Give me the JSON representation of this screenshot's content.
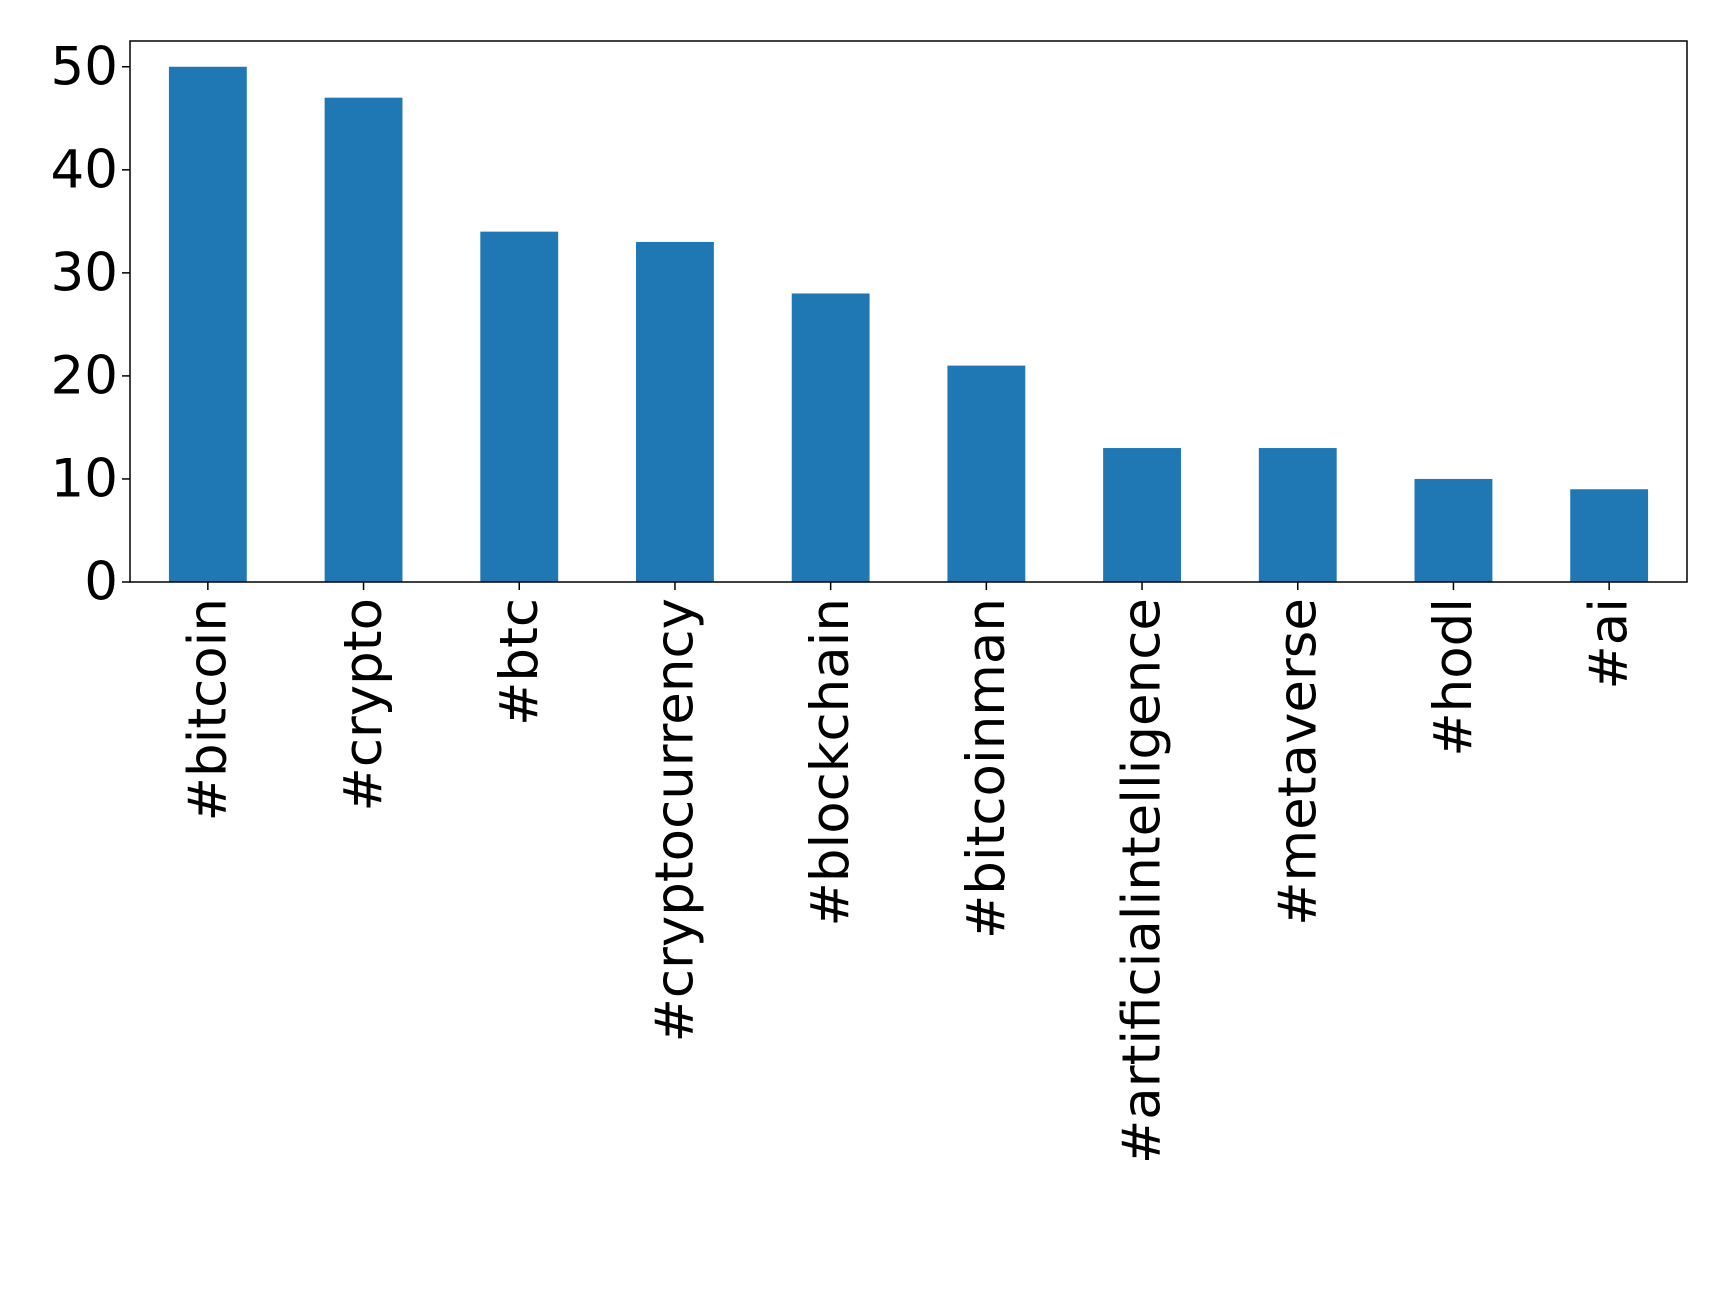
{
  "chart_data": {
    "type": "bar",
    "categories": [
      "#bitcoin",
      "#crypto",
      "#btc",
      "#cryptocurrency",
      "#blockchain",
      "#bitcoinman",
      "#artificialintelligence",
      "#metaverse",
      "#hodl",
      "#ai"
    ],
    "values": [
      50,
      47,
      34,
      33,
      28,
      21,
      13,
      13,
      10,
      9
    ],
    "color": "#1f77b4",
    "ylim": [
      0,
      52.5
    ],
    "yticks": [
      0,
      10,
      20,
      30,
      40,
      50
    ],
    "grid": false
  }
}
